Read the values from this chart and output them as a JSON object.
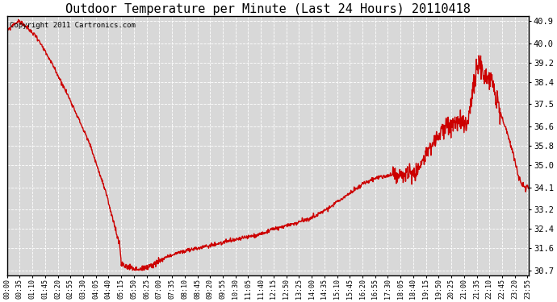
{
  "title": "Outdoor Temperature per Minute (Last 24 Hours) 20110418",
  "copyright_text": "Copyright 2011 Cartronics.com",
  "line_color": "#cc0000",
  "bg_color": "#ffffff",
  "plot_bg_color": "#d8d8d8",
  "grid_color": "#ffffff",
  "yticks": [
    30.7,
    31.6,
    32.4,
    33.2,
    34.1,
    35.0,
    35.8,
    36.6,
    37.5,
    38.4,
    39.2,
    40.0,
    40.9
  ],
  "ylim": [
    30.5,
    41.1
  ],
  "title_fontsize": 11,
  "copyright_fontsize": 6.5,
  "xlabel_fontsize": 6,
  "ylabel_fontsize": 7.5,
  "xtick_labels": [
    "00:00",
    "00:35",
    "01:10",
    "01:45",
    "02:20",
    "02:55",
    "03:30",
    "04:05",
    "04:40",
    "05:15",
    "05:50",
    "06:25",
    "07:00",
    "07:35",
    "08:10",
    "08:45",
    "09:20",
    "09:55",
    "10:30",
    "11:05",
    "11:40",
    "12:15",
    "12:50",
    "13:25",
    "14:00",
    "14:35",
    "15:10",
    "15:45",
    "16:20",
    "16:55",
    "17:30",
    "18:05",
    "18:40",
    "19:15",
    "19:50",
    "20:25",
    "21:00",
    "21:35",
    "22:10",
    "22:45",
    "23:20",
    "23:55"
  ],
  "line_width": 1.0
}
